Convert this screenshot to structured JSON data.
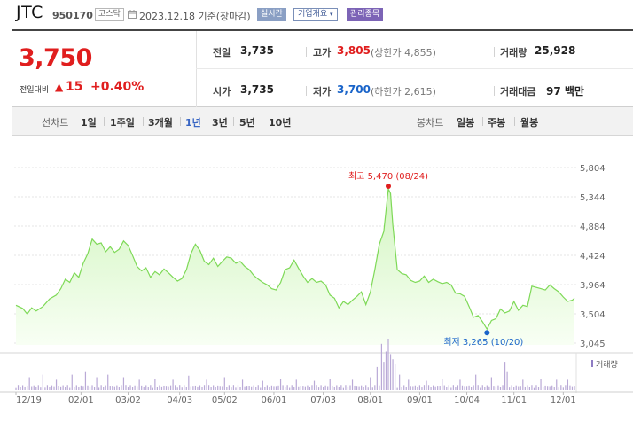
{
  "header": {
    "name": "JTC",
    "code": "950170",
    "market_badge": "코스닥",
    "asof": "2023.12.18 기준(장마감)",
    "realtime_badge": "실시간",
    "overview_button": "기업개요",
    "managed_badge": "관리종목"
  },
  "quote": {
    "price": "3,750",
    "change_label": "전일대비",
    "change_arrow": "▲",
    "change_value": "15",
    "change_rate": "+0.40%",
    "rows": {
      "prev_close": {
        "label": "전일",
        "value": "3,735"
      },
      "high": {
        "label": "고가",
        "value": "3,805",
        "extra": "(상한가 4,855)"
      },
      "volume": {
        "label": "거래량",
        "value": "25,928"
      },
      "open": {
        "label": "시가",
        "value": "3,735"
      },
      "low": {
        "label": "저가",
        "value": "3,700",
        "extra": "(하한가 2,615)"
      },
      "amount": {
        "label": "거래대금",
        "value": "97 백만"
      }
    }
  },
  "toolbar": {
    "line_label": "선차트",
    "periods": [
      "1일",
      "1주일",
      "3개월",
      "1년",
      "3년",
      "5년",
      "10년"
    ],
    "selected_period": "1년",
    "candle_label": "봉차트",
    "candles": [
      "일봉",
      "주봉",
      "월봉"
    ]
  },
  "chart_data": {
    "type": "area",
    "colors": {
      "line": "#7ed957",
      "fill_top": "#d2f5c0",
      "fill_bottom": "#f8fff4",
      "high": "#e01e1e",
      "low": "#1a64c9",
      "volume": "#b9a9d6"
    },
    "y_ticks": [
      5804,
      5344,
      4884,
      4424,
      3964,
      3504,
      3045
    ],
    "y_tick_labels": [
      "5,804",
      "5,344",
      "4,884",
      "4,424",
      "3,964",
      "3,504",
      "3,045"
    ],
    "ylim": [
      3045,
      5804
    ],
    "x_labels": [
      "12/19",
      "02/01",
      "03/02",
      "04/03",
      "05/02",
      "06/01",
      "07/03",
      "08/01",
      "09/01",
      "10/04",
      "11/01",
      "12/01"
    ],
    "x_label_positions": [
      0,
      29,
      50,
      73,
      93,
      115,
      137,
      158,
      180,
      201,
      222,
      244
    ],
    "n_points": 250,
    "series": [
      {
        "values": [
          [
            0,
            3640
          ],
          [
            3,
            3590
          ],
          [
            5,
            3500
          ],
          [
            7,
            3600
          ],
          [
            9,
            3550
          ],
          [
            12,
            3620
          ],
          [
            15,
            3740
          ],
          [
            18,
            3800
          ],
          [
            20,
            3900
          ],
          [
            22,
            4050
          ],
          [
            24,
            4000
          ],
          [
            26,
            4150
          ],
          [
            28,
            4080
          ],
          [
            30,
            4300
          ],
          [
            32,
            4450
          ],
          [
            34,
            4680
          ],
          [
            36,
            4600
          ],
          [
            38,
            4620
          ],
          [
            40,
            4480
          ],
          [
            42,
            4560
          ],
          [
            44,
            4470
          ],
          [
            46,
            4520
          ],
          [
            48,
            4650
          ],
          [
            50,
            4580
          ],
          [
            52,
            4420
          ],
          [
            54,
            4250
          ],
          [
            56,
            4180
          ],
          [
            58,
            4230
          ],
          [
            60,
            4080
          ],
          [
            62,
            4170
          ],
          [
            64,
            4120
          ],
          [
            66,
            4210
          ],
          [
            68,
            4150
          ],
          [
            70,
            4080
          ],
          [
            72,
            4020
          ],
          [
            74,
            4060
          ],
          [
            76,
            4200
          ],
          [
            78,
            4450
          ],
          [
            80,
            4600
          ],
          [
            82,
            4500
          ],
          [
            84,
            4330
          ],
          [
            86,
            4280
          ],
          [
            88,
            4380
          ],
          [
            90,
            4250
          ],
          [
            92,
            4330
          ],
          [
            94,
            4400
          ],
          [
            96,
            4380
          ],
          [
            98,
            4300
          ],
          [
            100,
            4330
          ],
          [
            102,
            4250
          ],
          [
            104,
            4200
          ],
          [
            106,
            4110
          ],
          [
            108,
            4050
          ],
          [
            110,
            4000
          ],
          [
            112,
            3960
          ],
          [
            114,
            3900
          ],
          [
            116,
            3880
          ],
          [
            118,
            4000
          ],
          [
            120,
            4200
          ],
          [
            122,
            4230
          ],
          [
            124,
            4350
          ],
          [
            126,
            4220
          ],
          [
            128,
            4100
          ],
          [
            130,
            4000
          ],
          [
            132,
            4060
          ],
          [
            134,
            4000
          ],
          [
            136,
            4020
          ],
          [
            138,
            3960
          ],
          [
            140,
            3800
          ],
          [
            142,
            3750
          ],
          [
            144,
            3600
          ],
          [
            146,
            3700
          ],
          [
            148,
            3650
          ],
          [
            150,
            3720
          ],
          [
            152,
            3780
          ],
          [
            154,
            3850
          ],
          [
            156,
            3650
          ],
          [
            158,
            3850
          ],
          [
            160,
            4200
          ],
          [
            162,
            4600
          ],
          [
            164,
            4800
          ],
          [
            166,
            5470
          ],
          [
            167,
            5400
          ],
          [
            168,
            4900
          ],
          [
            170,
            4200
          ],
          [
            172,
            4140
          ],
          [
            174,
            4120
          ],
          [
            176,
            4030
          ],
          [
            178,
            4000
          ],
          [
            180,
            4020
          ],
          [
            182,
            4100
          ],
          [
            184,
            4000
          ],
          [
            186,
            4050
          ],
          [
            188,
            4010
          ],
          [
            190,
            3980
          ],
          [
            192,
            4000
          ],
          [
            194,
            3960
          ],
          [
            196,
            3830
          ],
          [
            198,
            3820
          ],
          [
            200,
            3780
          ],
          [
            202,
            3620
          ],
          [
            204,
            3450
          ],
          [
            206,
            3480
          ],
          [
            208,
            3380
          ],
          [
            210,
            3265
          ],
          [
            212,
            3400
          ],
          [
            214,
            3430
          ],
          [
            216,
            3580
          ],
          [
            218,
            3520
          ],
          [
            220,
            3550
          ],
          [
            222,
            3700
          ],
          [
            224,
            3560
          ],
          [
            226,
            3640
          ],
          [
            228,
            3620
          ],
          [
            230,
            3940
          ],
          [
            232,
            3920
          ],
          [
            234,
            3900
          ],
          [
            236,
            3880
          ],
          [
            238,
            3960
          ],
          [
            240,
            3900
          ],
          [
            242,
            3850
          ],
          [
            244,
            3770
          ],
          [
            246,
            3700
          ],
          [
            248,
            3720
          ],
          [
            249,
            3750
          ]
        ]
      }
    ],
    "high_label": "최고",
    "high_value": "5,470",
    "high_date": "(08/24)",
    "high_index": 166,
    "low_label": "최저",
    "low_value": "3,265",
    "low_date": "(10/20)",
    "low_index": 210,
    "volume_label": "거래량",
    "volume_spikes": [
      [
        6,
        0.25
      ],
      [
        12,
        0.3
      ],
      [
        18,
        0.2
      ],
      [
        25,
        0.3
      ],
      [
        31,
        0.35
      ],
      [
        36,
        0.25
      ],
      [
        41,
        0.3
      ],
      [
        48,
        0.25
      ],
      [
        55,
        0.2
      ],
      [
        62,
        0.22
      ],
      [
        70,
        0.2
      ],
      [
        77,
        0.28
      ],
      [
        85,
        0.2
      ],
      [
        93,
        0.25
      ],
      [
        101,
        0.2
      ],
      [
        110,
        0.18
      ],
      [
        118,
        0.22
      ],
      [
        125,
        0.2
      ],
      [
        133,
        0.18
      ],
      [
        140,
        0.22
      ],
      [
        150,
        0.2
      ],
      [
        158,
        0.25
      ],
      [
        161,
        0.45
      ],
      [
        163,
        0.9
      ],
      [
        164,
        0.55
      ],
      [
        165,
        0.75
      ],
      [
        166,
        1.0
      ],
      [
        167,
        0.7
      ],
      [
        168,
        0.6
      ],
      [
        169,
        0.5
      ],
      [
        171,
        0.3
      ],
      [
        175,
        0.2
      ],
      [
        183,
        0.18
      ],
      [
        190,
        0.22
      ],
      [
        198,
        0.2
      ],
      [
        205,
        0.3
      ],
      [
        212,
        0.25
      ],
      [
        218,
        0.55
      ],
      [
        219,
        0.35
      ],
      [
        226,
        0.2
      ],
      [
        234,
        0.22
      ],
      [
        241,
        0.2
      ],
      [
        246,
        0.2
      ]
    ]
  }
}
